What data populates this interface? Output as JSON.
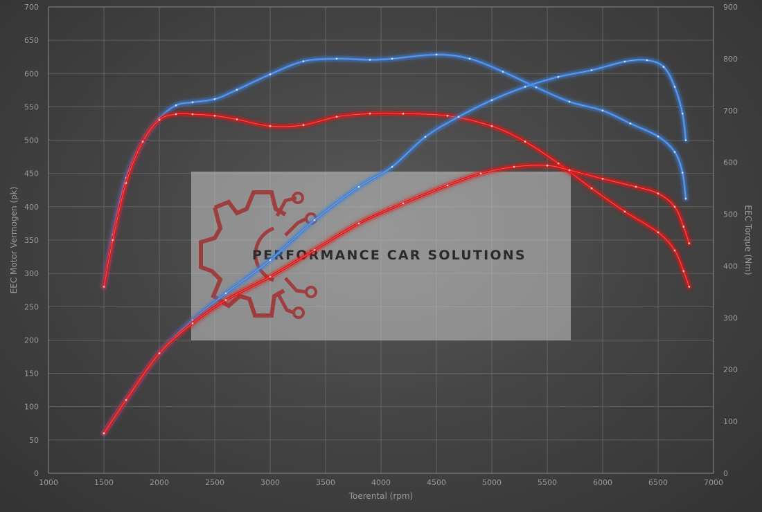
{
  "chart_data": {
    "type": "line",
    "xlabel": "Toerental (rpm)",
    "ylabel_left": "EEC Motor Vermogen (pk)",
    "ylabel_right": "EEC Torque (Nm)",
    "xlim": [
      1000,
      7000
    ],
    "ylim_left": [
      0,
      700
    ],
    "ylim_right": [
      0,
      900
    ],
    "grid": true,
    "x_ticks": [
      1000,
      1500,
      2000,
      2500,
      3000,
      3500,
      4000,
      4500,
      5000,
      5500,
      6000,
      6500,
      7000
    ],
    "y_left_ticks": [
      0,
      50,
      100,
      150,
      200,
      250,
      300,
      350,
      400,
      450,
      500,
      550,
      600,
      650,
      700
    ],
    "y_right_ticks": [
      0,
      100,
      200,
      300,
      400,
      500,
      600,
      700,
      800,
      900
    ],
    "colors": {
      "tuned": "#3d7fd6",
      "stock": "#e01414"
    },
    "series": [
      {
        "axis": "right",
        "color": "#3d7fd6",
        "x": [
          1500,
          1580,
          1700,
          1850,
          2000,
          2150,
          2300,
          2500,
          2700,
          3000,
          3300,
          3600,
          3900,
          4100,
          4500,
          4800,
          5100,
          5400,
          5700,
          6000,
          6250,
          6500,
          6650,
          6720,
          6750
        ],
        "y": [
          360,
          460,
          570,
          640,
          685,
          710,
          716,
          722,
          740,
          770,
          795,
          800,
          798,
          800,
          808,
          800,
          775,
          745,
          717,
          700,
          675,
          650,
          620,
          580,
          530
        ]
      },
      {
        "axis": "right",
        "color": "#e01414",
        "x": [
          1500,
          1580,
          1700,
          1850,
          2000,
          2150,
          2300,
          2500,
          2700,
          3000,
          3300,
          3600,
          3900,
          4200,
          4600,
          5000,
          5300,
          5600,
          5900,
          6200,
          6500,
          6650,
          6730,
          6780
        ],
        "y": [
          360,
          450,
          560,
          640,
          682,
          693,
          693,
          690,
          683,
          670,
          672,
          688,
          694,
          694,
          690,
          670,
          640,
          598,
          550,
          505,
          465,
          430,
          390,
          360
        ]
      },
      {
        "axis": "left",
        "color": "#3d7fd6",
        "x": [
          1500,
          1700,
          2000,
          2300,
          2600,
          3000,
          3400,
          3800,
          4100,
          4400,
          4700,
          5000,
          5300,
          5600,
          5900,
          6200,
          6400,
          6550,
          6650,
          6720,
          6750
        ],
        "y": [
          60,
          110,
          180,
          230,
          270,
          320,
          380,
          430,
          460,
          505,
          535,
          560,
          580,
          595,
          605,
          618,
          620,
          610,
          580,
          540,
          500
        ]
      },
      {
        "axis": "left",
        "color": "#e01414",
        "x": [
          1500,
          1700,
          2000,
          2300,
          2600,
          3000,
          3400,
          3800,
          4200,
          4600,
          4900,
          5200,
          5500,
          5700,
          6000,
          6300,
          6500,
          6650,
          6730,
          6780
        ],
        "y": [
          60,
          110,
          180,
          225,
          260,
          295,
          335,
          375,
          405,
          432,
          450,
          460,
          462,
          455,
          442,
          430,
          420,
          400,
          370,
          345
        ]
      }
    ]
  },
  "logo": {
    "text": "PERFORMANCE CAR SOLUTIONS",
    "color": "#a31f1f"
  }
}
